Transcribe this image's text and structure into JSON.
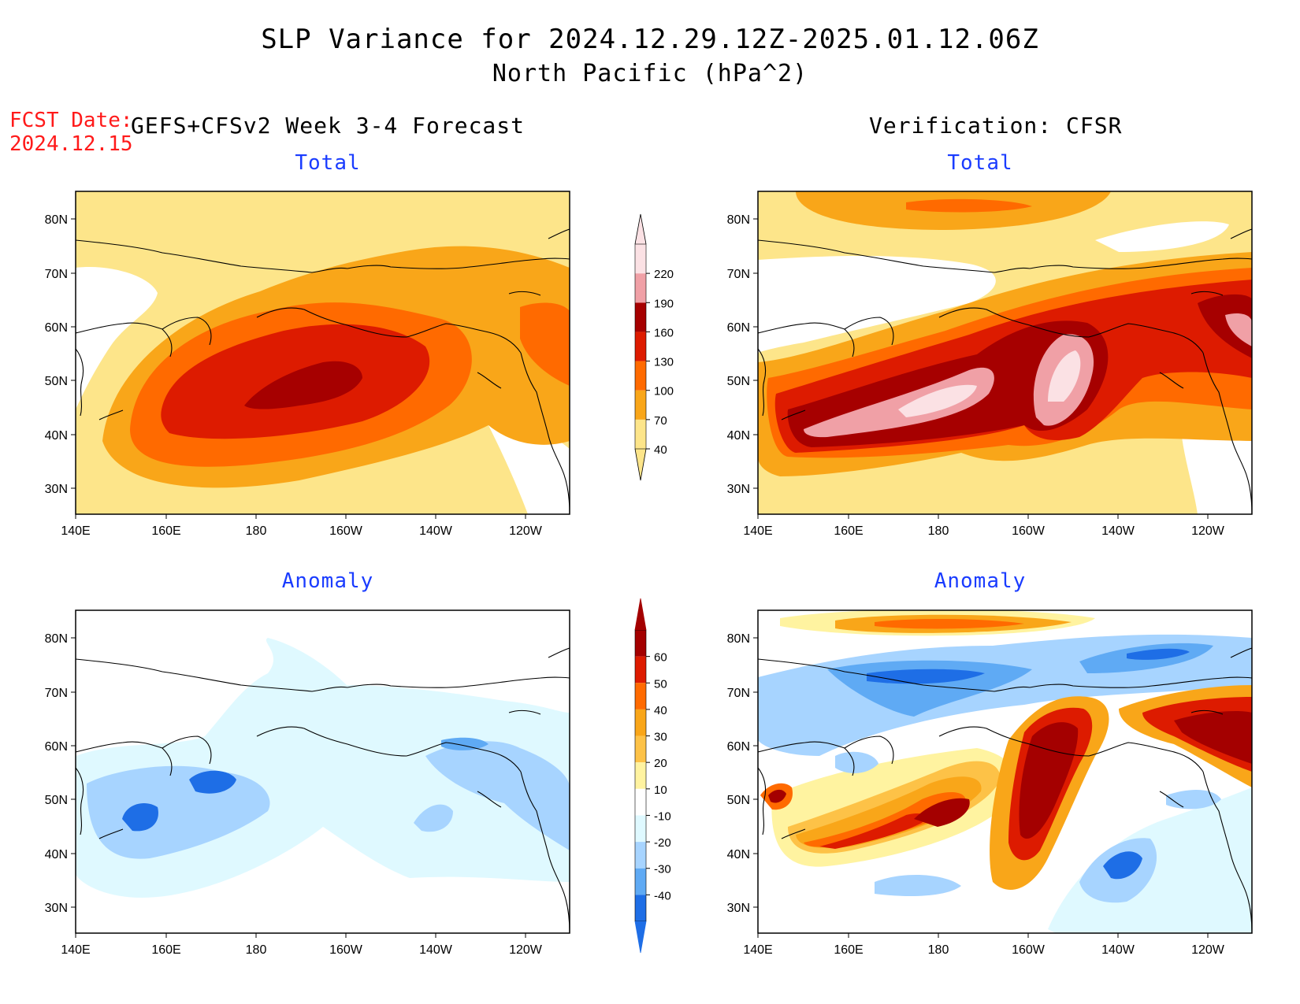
{
  "title": {
    "line1": "SLP Variance for 2024.12.29.12Z-2025.01.12.06Z",
    "line2": "North Pacific (hPa^2)"
  },
  "forecast": {
    "label": "FCST Date:",
    "date": "2024.12.15",
    "heading": "GEFS+CFSv2 Week 3-4 Forecast"
  },
  "verification": {
    "heading": "Verification: CFSR"
  },
  "panels": {
    "forecast_total": {
      "title": "Total"
    },
    "verif_total": {
      "title": "Total"
    },
    "forecast_anomaly": {
      "title": "Anomaly"
    },
    "verif_anomaly": {
      "title": "Anomaly"
    }
  },
  "axes": {
    "lon_ticks": [
      "140E",
      "160E",
      "180",
      "160W",
      "140W",
      "120W"
    ],
    "lat_ticks": [
      "80N",
      "70N",
      "60N",
      "50N",
      "40N",
      "30N"
    ]
  },
  "colorbars": {
    "total": {
      "levels": [
        "40",
        "70",
        "100",
        "130",
        "160",
        "190",
        "220"
      ],
      "colors": [
        "#fde58a",
        "#f9a619",
        "#ff6a00",
        "#dd1b00",
        "#a60000",
        "#f0a0a6",
        "#fbe1e4"
      ]
    },
    "anomaly": {
      "levels": [
        "60",
        "50",
        "40",
        "30",
        "20",
        "10",
        "-10",
        "-20",
        "-30",
        "-40"
      ],
      "colors": [
        "#a40000",
        "#dd1b00",
        "#ff6a00",
        "#f9a619",
        "#fdc247",
        "#fff3a0",
        "#ffffff",
        "#dff9ff",
        "#a7d4ff",
        "#5faaf4",
        "#1e6ee6"
      ]
    }
  },
  "field_colors": {
    "land": "#000000",
    "frame": "#000000"
  }
}
